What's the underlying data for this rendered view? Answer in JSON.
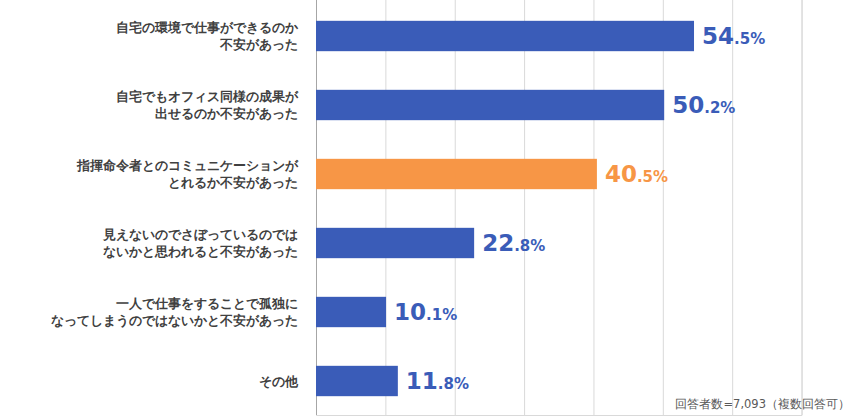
{
  "chart_data": {
    "type": "bar",
    "orientation": "horizontal",
    "categories": [
      "自宅の環境で仕事ができるのか\n不安があった",
      "自宅でもオフィス同様の成果が\n出せるのか不安があった",
      "指揮命令者とのコミュニケーションが\nとれるか不安があった",
      "見えないのでさぼっているのでは\nないかと思われると不安があった",
      "一人で仕事をすることで孤独に\nなってしまうのではないかと不安があった",
      "その他"
    ],
    "values": [
      54.5,
      50.2,
      40.5,
      22.8,
      10.1,
      11.8
    ],
    "value_labels": [
      "54.5%",
      "50.2%",
      "40.5%",
      "22.8%",
      "10.1%",
      "11.8%"
    ],
    "colors": [
      "#3a5cb8",
      "#3a5cb8",
      "#f79646",
      "#3a5cb8",
      "#3a5cb8",
      "#3a5cb8"
    ],
    "xlim": [
      0,
      70
    ],
    "xticks": [
      0,
      10,
      20,
      30,
      40,
      50,
      60,
      70
    ],
    "grid": true,
    "tick_labels": false,
    "data_labels": true,
    "annotations": [
      "回答者数=7,093（複数回答可）"
    ]
  }
}
